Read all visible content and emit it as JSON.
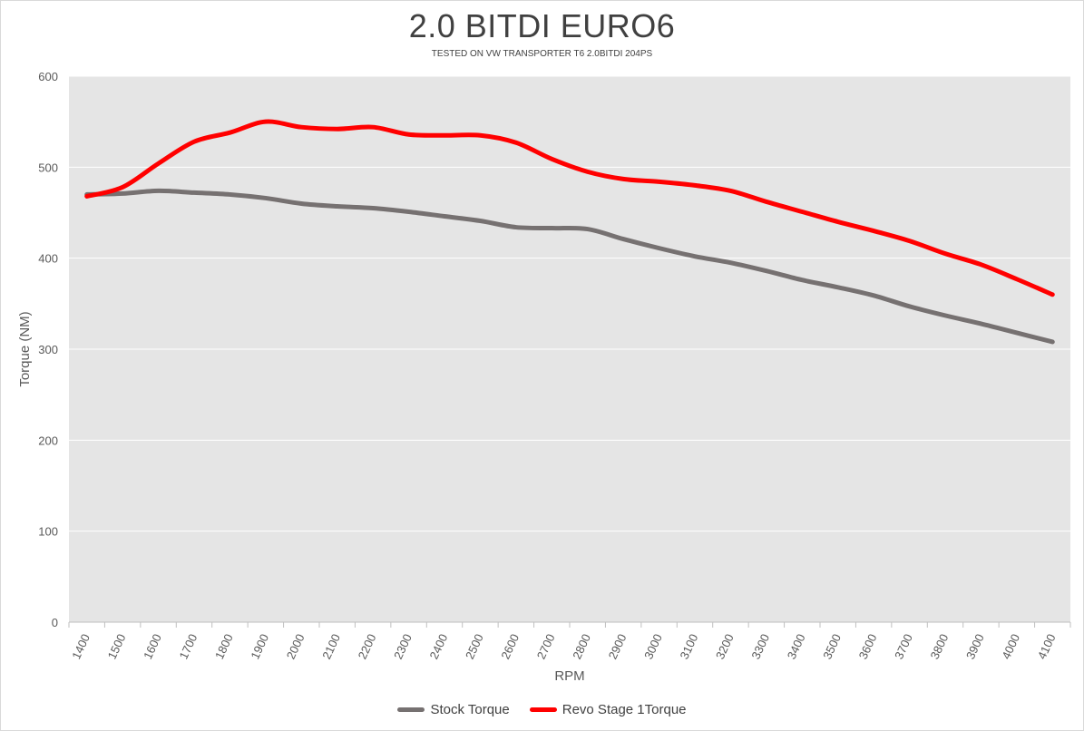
{
  "colors": {
    "plot_bg": "#e5e5e5",
    "grid": "#ffffff",
    "stock": "#767171",
    "revo": "#ff0000",
    "text": "#595959"
  },
  "chart_data": {
    "type": "line",
    "title": "2.0 BITDI EURO6",
    "subtitle": "TESTED ON VW TRANSPORTER T6 2.0BITDI 204PS",
    "xlabel": "RPM",
    "ylabel": "Torque (NM)",
    "ylim": [
      0,
      600
    ],
    "yticks": [
      0,
      100,
      200,
      300,
      400,
      500,
      600
    ],
    "grid": true,
    "legend": "bottom",
    "x": [
      1400,
      1500,
      1600,
      1700,
      1800,
      1900,
      2000,
      2100,
      2200,
      2300,
      2400,
      2500,
      2600,
      2700,
      2800,
      2900,
      3000,
      3100,
      3200,
      3300,
      3400,
      3500,
      3600,
      3700,
      3800,
      3900,
      4000,
      4100
    ],
    "series": [
      {
        "name": "Stock Torque",
        "color": "#767171",
        "values": [
          470,
          471,
          474,
          472,
          470,
          466,
          460,
          457,
          455,
          451,
          446,
          441,
          434,
          433,
          432,
          421,
          411,
          402,
          395,
          386,
          376,
          368,
          359,
          347,
          337,
          328,
          318,
          308
        ]
      },
      {
        "name": "Revo Stage 1Torque",
        "color": "#ff0000",
        "values": [
          468,
          478,
          504,
          528,
          538,
          550,
          544,
          542,
          544,
          536,
          535,
          535,
          527,
          509,
          495,
          487,
          484,
          480,
          474,
          462,
          451,
          440,
          430,
          419,
          405,
          393,
          377,
          360
        ]
      }
    ]
  }
}
